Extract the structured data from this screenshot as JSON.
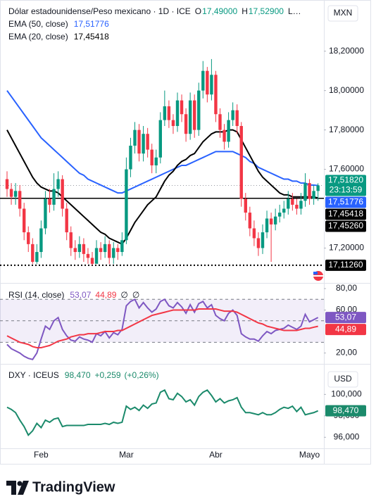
{
  "chart_data": [
    {
      "type": "candlestick",
      "title": "Dólar estadounidense/Peso mexicano · 1D · ICE",
      "unit": "MXN",
      "ohlc_legend": [
        {
          "key": "O",
          "value": 17.49,
          "label": "17,49000"
        },
        {
          "key": "H",
          "value": 17.529,
          "label": "17,52900"
        },
        {
          "key": "L…"
        }
      ],
      "categories": [
        null,
        null,
        null,
        null,
        null,
        null,
        null,
        null,
        "Feb",
        null,
        null,
        null,
        null,
        null,
        null,
        null,
        null,
        null,
        null,
        null,
        null,
        null,
        null,
        null,
        null,
        null,
        null,
        null,
        "Mar",
        null,
        null,
        null,
        null,
        null,
        null,
        null,
        null,
        null,
        null,
        null,
        null,
        null,
        null,
        null,
        null,
        null,
        null,
        null,
        null,
        "Abr",
        null,
        null,
        null,
        null,
        null,
        null,
        null,
        null,
        null,
        null,
        null,
        null,
        null,
        null,
        null,
        null,
        null,
        null,
        null,
        null,
        null,
        "Mayo",
        null,
        null
      ],
      "open": [
        17.55,
        17.5,
        17.46,
        17.49,
        17.4,
        17.28,
        17.22,
        17.13,
        17.18,
        17.3,
        17.45,
        17.42,
        17.5,
        17.55,
        17.4,
        17.28,
        17.2,
        17.18,
        17.22,
        17.17,
        17.15,
        17.12,
        17.2,
        17.18,
        17.22,
        17.15,
        17.2,
        17.18,
        17.24,
        17.6,
        17.72,
        17.8,
        17.68,
        17.78,
        17.7,
        17.62,
        17.66,
        17.85,
        17.92,
        17.85,
        17.82,
        17.95,
        17.88,
        17.78,
        17.95,
        17.8,
        18.0,
        18.1,
        17.98,
        18.08,
        17.88,
        17.8,
        17.74,
        17.85,
        17.9,
        17.82,
        17.45,
        17.38,
        17.3,
        17.25,
        17.2,
        17.28,
        17.35,
        17.32,
        17.36,
        17.38,
        17.4,
        17.45,
        17.42,
        17.4,
        17.44,
        17.53,
        17.45,
        17.49
      ],
      "high": [
        17.59,
        17.53,
        17.53,
        17.52,
        17.43,
        17.31,
        17.25,
        17.22,
        17.34,
        17.49,
        17.5,
        17.58,
        17.59,
        17.57,
        17.43,
        17.31,
        17.24,
        17.26,
        17.25,
        17.2,
        17.18,
        17.24,
        17.23,
        17.26,
        17.24,
        17.23,
        17.22,
        17.28,
        17.66,
        17.76,
        17.84,
        17.83,
        17.82,
        17.81,
        17.73,
        17.7,
        17.89,
        18.0,
        17.95,
        17.88,
        17.99,
        17.98,
        17.91,
        17.99,
        17.98,
        18.04,
        18.15,
        18.12,
        18.16,
        18.1,
        17.91,
        17.83,
        17.89,
        17.94,
        17.93,
        17.84,
        17.48,
        17.41,
        17.34,
        17.28,
        17.32,
        17.39,
        17.38,
        17.4,
        17.42,
        17.44,
        17.49,
        17.48,
        17.45,
        17.48,
        17.58,
        17.55,
        17.52,
        17.529
      ],
      "low": [
        17.46,
        17.42,
        17.42,
        17.36,
        17.24,
        17.18,
        17.12,
        17.12,
        17.15,
        17.27,
        17.38,
        17.39,
        17.46,
        17.36,
        17.24,
        17.16,
        17.14,
        17.15,
        17.13,
        17.12,
        17.1126,
        17.13,
        17.14,
        17.15,
        17.12,
        17.12,
        17.14,
        17.16,
        17.22,
        17.56,
        17.68,
        17.64,
        17.64,
        17.66,
        17.58,
        17.58,
        17.63,
        17.82,
        17.81,
        17.78,
        17.79,
        17.84,
        17.74,
        17.75,
        17.76,
        17.77,
        17.96,
        17.94,
        17.95,
        17.84,
        17.76,
        17.7,
        17.71,
        17.82,
        17.78,
        17.41,
        17.34,
        17.26,
        17.21,
        17.16,
        17.17,
        17.25,
        17.13,
        17.29,
        17.33,
        17.35,
        17.37,
        17.39,
        17.37,
        17.37,
        17.41,
        17.42,
        17.42,
        17.44
      ],
      "close": [
        17.5,
        17.46,
        17.49,
        17.4,
        17.28,
        17.22,
        17.13,
        17.18,
        17.3,
        17.45,
        17.42,
        17.5,
        17.55,
        17.4,
        17.28,
        17.2,
        17.18,
        17.22,
        17.17,
        17.15,
        17.12,
        17.2,
        17.18,
        17.22,
        17.15,
        17.2,
        17.18,
        17.24,
        17.6,
        17.72,
        17.8,
        17.68,
        17.78,
        17.7,
        17.62,
        17.66,
        17.85,
        17.92,
        17.85,
        17.82,
        17.95,
        17.88,
        17.78,
        17.95,
        17.8,
        18.0,
        18.1,
        17.98,
        18.08,
        17.88,
        17.8,
        17.74,
        17.85,
        17.9,
        17.82,
        17.45,
        17.38,
        17.3,
        17.25,
        17.2,
        17.28,
        17.35,
        17.32,
        17.36,
        17.38,
        17.4,
        17.45,
        17.42,
        17.4,
        17.44,
        17.53,
        17.45,
        17.49,
        17.5182
      ],
      "last_close_label": "17,51820",
      "countdown": "23:13:59",
      "up_color": "#089981",
      "down_color": "#f23645",
      "series": [
        {
          "name": "EMA (50, close)",
          "color": "#2962ff",
          "last_label": "17,51776",
          "values": [
            18.0,
            17.97,
            17.94,
            17.91,
            17.88,
            17.85,
            17.82,
            17.79,
            17.76,
            17.74,
            17.72,
            17.7,
            17.68,
            17.66,
            17.64,
            17.62,
            17.6,
            17.58,
            17.57,
            17.55,
            17.54,
            17.53,
            17.52,
            17.51,
            17.5,
            17.49,
            17.48,
            17.48,
            17.49,
            17.5,
            17.51,
            17.52,
            17.53,
            17.54,
            17.55,
            17.56,
            17.57,
            17.58,
            17.59,
            17.6,
            17.61,
            17.62,
            17.62,
            17.63,
            17.64,
            17.65,
            17.66,
            17.67,
            17.68,
            17.69,
            17.69,
            17.69,
            17.69,
            17.69,
            17.68,
            17.67,
            17.66,
            17.64,
            17.63,
            17.61,
            17.6,
            17.59,
            17.58,
            17.57,
            17.56,
            17.55,
            17.55,
            17.54,
            17.54,
            17.53,
            17.53,
            17.52,
            17.52,
            17.51776
          ]
        },
        {
          "name": "EMA (20, close)",
          "color": "#000000",
          "last_label": "17,45418",
          "values": [
            17.8,
            17.76,
            17.72,
            17.68,
            17.64,
            17.6,
            17.56,
            17.53,
            17.51,
            17.5,
            17.49,
            17.49,
            17.48,
            17.46,
            17.44,
            17.42,
            17.4,
            17.38,
            17.36,
            17.34,
            17.32,
            17.3,
            17.28,
            17.27,
            17.25,
            17.24,
            17.23,
            17.22,
            17.25,
            17.29,
            17.33,
            17.36,
            17.39,
            17.42,
            17.44,
            17.46,
            17.5,
            17.54,
            17.57,
            17.59,
            17.62,
            17.64,
            17.65,
            17.67,
            17.68,
            17.71,
            17.74,
            17.76,
            17.78,
            17.79,
            17.79,
            17.79,
            17.8,
            17.8,
            17.79,
            17.75,
            17.71,
            17.67,
            17.63,
            17.59,
            17.56,
            17.54,
            17.52,
            17.5,
            17.48,
            17.47,
            17.47,
            17.46,
            17.46,
            17.46,
            17.46,
            17.46,
            17.46,
            17.45418
          ]
        }
      ],
      "hlines": [
        {
          "value": 17.4526,
          "label": "17,45260",
          "style": "solid"
        },
        {
          "value": 17.1126,
          "label": "17,11260",
          "style": "dotted"
        }
      ],
      "ylim": [
        17.03,
        18.46
      ],
      "yticks": [
        {
          "value": 17.2,
          "label": "17,20000"
        },
        {
          "value": 17.6,
          "label": "17,60000"
        },
        {
          "value": 17.8,
          "label": "17,80000"
        },
        {
          "value": 18.0,
          "label": "18,00000"
        },
        {
          "value": 18.2,
          "label": "18,20000"
        }
      ]
    },
    {
      "type": "line",
      "title": "RSI (14, close)",
      "series": [
        {
          "color": "#7e57c2",
          "last_label": "53,07",
          "values": [
            28,
            24,
            22,
            20,
            17,
            15,
            14,
            20,
            33,
            45,
            42,
            50,
            53,
            42,
            36,
            32,
            31,
            35,
            33,
            32,
            30,
            38,
            36,
            40,
            34,
            39,
            37,
            42,
            64,
            68,
            70,
            62,
            67,
            62,
            58,
            61,
            68,
            70,
            64,
            62,
            67,
            63,
            57,
            65,
            58,
            66,
            68,
            62,
            65,
            55,
            52,
            50,
            57,
            60,
            55,
            38,
            35,
            33,
            33,
            31,
            36,
            40,
            38,
            41,
            42,
            43,
            46,
            44,
            42,
            45,
            56,
            49,
            51,
            53.07
          ]
        },
        {
          "color": "#f23645",
          "last_label": "44,89",
          "values": [
            36,
            34,
            32,
            30,
            29,
            28,
            26,
            25,
            25,
            26,
            27,
            29,
            31,
            32,
            33,
            35,
            36,
            37,
            37,
            38,
            38,
            38,
            39,
            40,
            40,
            40,
            41,
            41,
            43,
            45,
            47,
            49,
            51,
            53,
            55,
            56,
            57,
            58,
            59,
            60,
            60,
            60,
            60,
            60,
            60,
            61,
            61,
            61,
            61,
            61,
            60,
            59,
            59,
            59,
            58,
            56,
            54,
            52,
            50,
            48,
            47,
            45,
            44,
            43,
            42,
            41,
            41,
            41,
            41,
            42,
            43,
            43,
            44,
            44.89
          ]
        }
      ],
      "legend_extra": [
        "∅",
        "∅"
      ],
      "band": [
        30,
        70
      ],
      "midline": 50,
      "ylim": [
        11.2,
        83.3
      ],
      "yticks": [
        {
          "value": 80,
          "label": "80,00"
        },
        {
          "value": 60,
          "label": "60,00"
        },
        {
          "value": 20,
          "label": "20,00"
        }
      ]
    },
    {
      "type": "line",
      "title": "DXY · ICEUS",
      "unit": "USD",
      "change": {
        "value": 0.259,
        "label": "+0,259"
      },
      "change_pct": {
        "value": 0.26,
        "label": "(+0,26%)"
      },
      "series": [
        {
          "color": "#1b8a6b",
          "last_label": "98,470",
          "values": [
            98.8,
            98.6,
            98.3,
            97.6,
            97.0,
            96.2,
            96.6,
            97.3,
            96.9,
            97.6,
            97.4,
            97.7,
            97.8,
            97.0,
            97.1,
            97.1,
            97.1,
            97.1,
            97.1,
            97.2,
            97.2,
            97.2,
            97.2,
            97.3,
            97.2,
            97.4,
            97.3,
            97.4,
            98.9,
            98.6,
            98.8,
            98.5,
            99.0,
            98.7,
            99.1,
            99.2,
            100.2,
            100.4,
            99.6,
            99.5,
            100.1,
            99.8,
            99.3,
            99.5,
            99.0,
            99.8,
            100.2,
            100.4,
            99.9,
            99.3,
            99.6,
            99.2,
            99.4,
            99.5,
            99.7,
            98.8,
            98.3,
            98.3,
            98.2,
            98.1,
            98.3,
            98.1,
            98.1,
            98.3,
            98.6,
            98.8,
            98.7,
            98.9,
            98.4,
            98.8,
            98.1,
            98.2,
            98.3,
            98.47
          ]
        }
      ],
      "ylim": [
        95.1,
        102.65
      ],
      "yticks": [
        {
          "value": 100,
          "label": "100,000"
        },
        {
          "value": 98,
          "label": "98,000"
        },
        {
          "value": 96,
          "label": "96,000"
        }
      ]
    }
  ],
  "footer": {
    "brand": "TradingView"
  }
}
